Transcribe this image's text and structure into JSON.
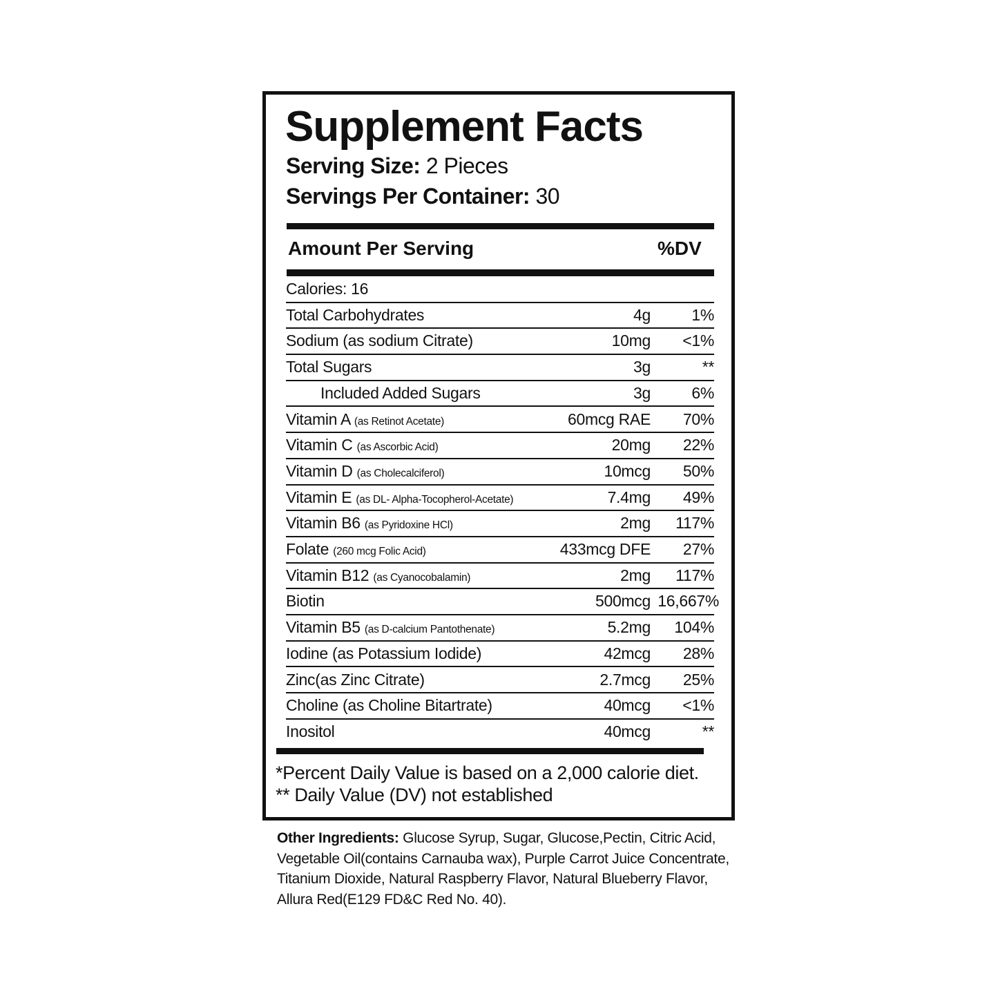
{
  "label": {
    "title": "Supplement Facts",
    "serving_size_label": "Serving Size:",
    "serving_size_value": " 2 Pieces",
    "servings_per_container_label": "Servings Per Container:",
    "servings_per_container_value": " 30",
    "amount_header": "Amount Per Serving",
    "dv_header": "%DV",
    "rows": [
      {
        "name": "Calories: 16",
        "sub": "",
        "amount": "",
        "dv": ""
      },
      {
        "name": "Total Carbohydrates",
        "sub": "",
        "amount": "4g",
        "dv": "1%"
      },
      {
        "name": "Sodium (as sodium Citrate)",
        "sub": "",
        "amount": "10mg",
        "dv": "<1%"
      },
      {
        "name": "Total Sugars",
        "sub": "",
        "amount": "3g",
        "dv": "**"
      },
      {
        "name": "Included Added Sugars",
        "sub": "",
        "amount": "3g",
        "dv": "6%"
      },
      {
        "name": "Vitamin A",
        "sub": "(as Retinot Acetate)",
        "amount": "60mcg RAE",
        "dv": "70%"
      },
      {
        "name": "Vitamin C",
        "sub": "(as Ascorbic Acid)",
        "amount": "20mg",
        "dv": "22%"
      },
      {
        "name": "Vitamin D",
        "sub": "(as Cholecalciferol)",
        "amount": "10mcg",
        "dv": "50%"
      },
      {
        "name": "Vitamin E",
        "sub": "(as DL- Alpha-Tocopherol-Acetate)",
        "amount": "7.4mg",
        "dv": "49%"
      },
      {
        "name": "Vitamin B6",
        "sub": "(as Pyridoxine HCl)",
        "amount": "2mg",
        "dv": "117%"
      },
      {
        "name": "Folate",
        "sub": "(260 mcg Folic Acid)",
        "amount": "433mcg DFE",
        "dv": "27%"
      },
      {
        "name": "Vitamin B12",
        "sub": "(as Cyanocobalamin)",
        "amount": "2mg",
        "dv": "117%"
      },
      {
        "name": "Biotin",
        "sub": "",
        "amount": "500mcg",
        "dv": "16,667%"
      },
      {
        "name": "Vitamin B5",
        "sub": "(as D-calcium Pantothenate)",
        "amount": "5.2mg",
        "dv": "104%"
      },
      {
        "name": "Iodine (as Potassium Iodide)",
        "sub": "",
        "amount": "42mcg",
        "dv": "28%"
      },
      {
        "name": "Zinc(as Zinc Citrate)",
        "sub": "",
        "amount": "2.7mcg",
        "dv": "25%"
      },
      {
        "name": "Choline (as Choline Bitartrate)",
        "sub": "",
        "amount": "40mcg",
        "dv": "<1%"
      },
      {
        "name": "Inositol",
        "sub": "",
        "amount": "40mcg",
        "dv": "**"
      }
    ],
    "footnote_1": "*Percent Daily Value is based on a 2,000 calorie diet.",
    "footnote_2": "** Daily Value (DV) not established"
  },
  "ingredients": {
    "label": "Other Ingredients:",
    "text": " Glucose Syrup, Sugar, Glucose,Pectin, Citric Acid,  Vegetable Oil(contains Carnauba wax), Purple Carrot Juice Concentrate, Titanium Dioxide, Natural Raspberry Flavor, Natural Blueberry Flavor, Allura Red(E129 FD&C Red No. 40)."
  }
}
